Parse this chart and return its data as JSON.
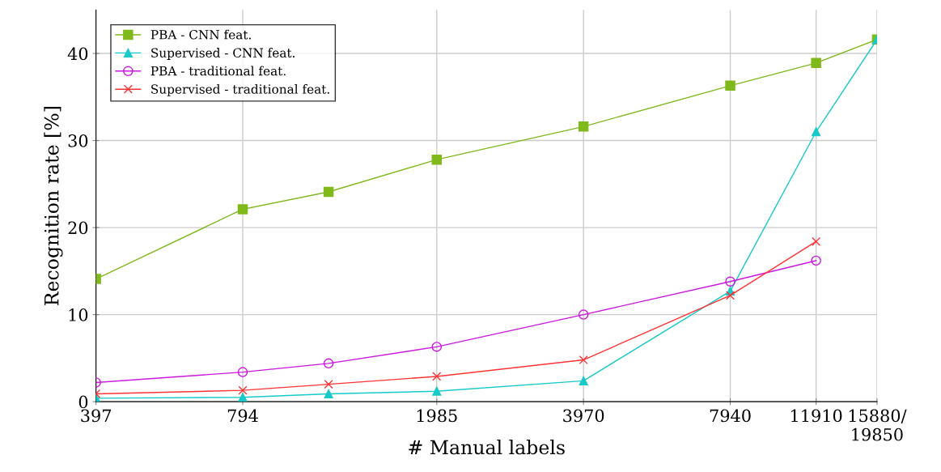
{
  "chart_data": {
    "type": "line",
    "xlabel": "# Manual labels",
    "ylabel": "Recognition rate [%]",
    "x": [
      397,
      794,
      1191,
      1985,
      3970,
      7940,
      11910,
      15880
    ],
    "log": "x",
    "xlim": [
      397,
      15880
    ],
    "xticks": [
      397,
      794,
      1985,
      3970,
      7940,
      11910,
      {
        "value": 15880,
        "label": "15880/\n19850"
      }
    ],
    "ylim": [
      0,
      45
    ],
    "yticks": [
      0,
      10,
      20,
      30,
      40
    ],
    "grid": true,
    "legend": "top left",
    "series": [
      {
        "name": "PBA - CNN feat.",
        "color": "#80b91b",
        "marker": "square",
        "values": [
          14.1,
          22.1,
          24.1,
          27.8,
          31.6,
          36.3,
          38.9,
          41.6
        ]
      },
      {
        "name": "Supervised - CNN feat.",
        "color": "#17c9c9",
        "marker": "triangle",
        "values": [
          0.4,
          0.5,
          0.9,
          1.2,
          2.4,
          12.7,
          31.0,
          41.6
        ]
      },
      {
        "name": "PBA - traditional feat.",
        "color": "#cc17e0",
        "marker": "circle",
        "values": [
          2.2,
          3.4,
          4.4,
          6.3,
          10.0,
          13.8,
          16.2,
          null
        ]
      },
      {
        "name": "Supervised - traditional feat.",
        "color": "#ff3333",
        "marker": "cross",
        "values": [
          0.9,
          1.3,
          2.0,
          2.9,
          4.8,
          12.2,
          18.4,
          null
        ]
      }
    ]
  }
}
